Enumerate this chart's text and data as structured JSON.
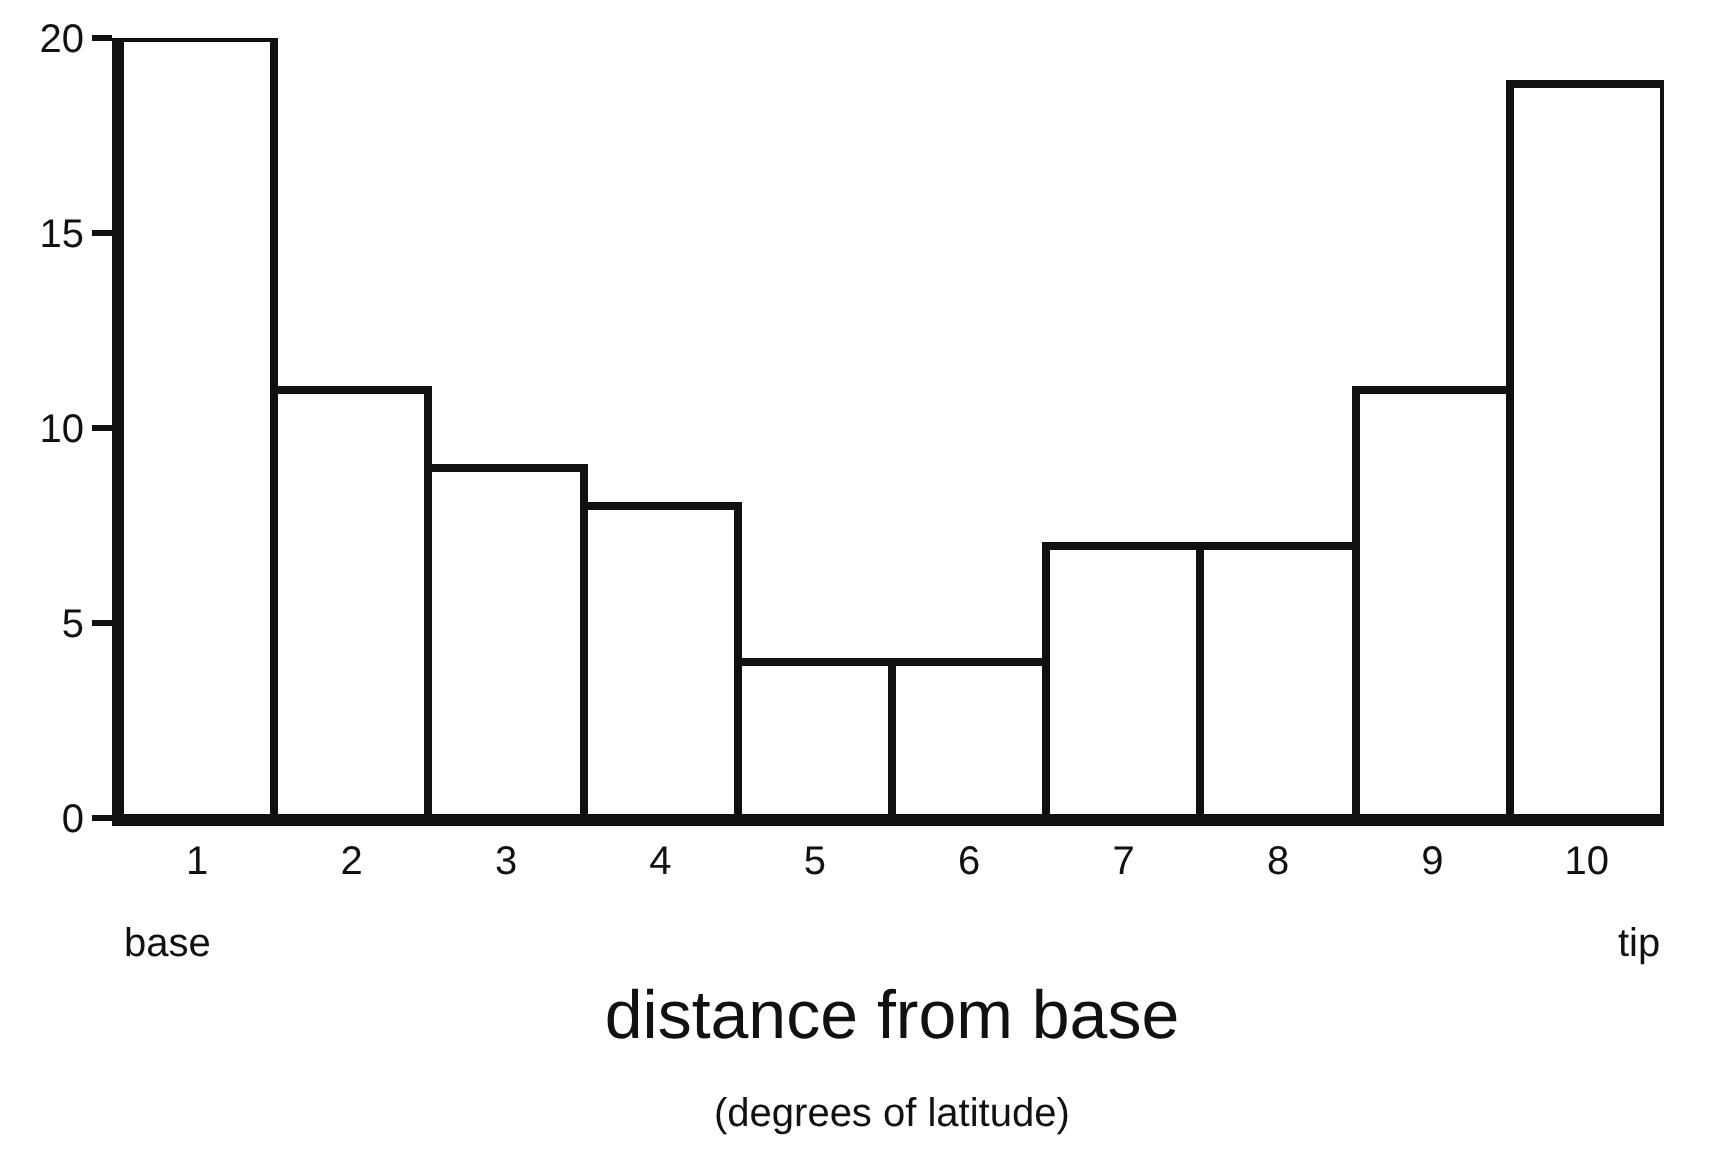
{
  "chart_data": {
    "type": "bar",
    "categories": [
      "1",
      "2",
      "3",
      "4",
      "5",
      "6",
      "7",
      "8",
      "9",
      "10"
    ],
    "values": [
      20,
      11,
      9,
      8,
      4,
      4,
      7,
      7,
      11,
      18.8
    ],
    "color": "#ffffff",
    "ylim": [
      0,
      20
    ],
    "yticks": [
      0,
      5,
      10,
      15,
      20
    ],
    "xlabel": "distance from base",
    "annotations": [
      "base",
      "tip",
      "(degrees of latitude)"
    ]
  }
}
